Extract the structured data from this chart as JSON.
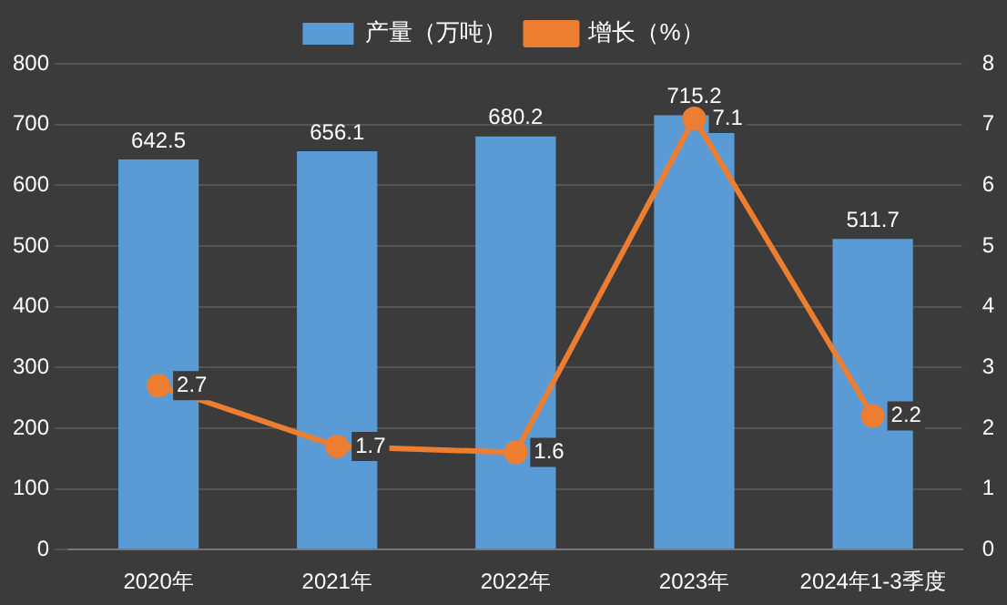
{
  "chart_data": {
    "type": "bar",
    "categories": [
      "2020年",
      "2021年",
      "2022年",
      "2023年",
      "2024年1-3季度"
    ],
    "series": [
      {
        "name": "产量（万吨）",
        "color": "#5b9bd5",
        "values": [
          642.5,
          656.1,
          680.2,
          715.2,
          511.7
        ]
      },
      {
        "name": "增长（%）",
        "type": "line",
        "axis": "y2",
        "color": "#ed7d31",
        "values": [
          2.7,
          1.7,
          1.6,
          7.1,
          2.2
        ]
      }
    ],
    "ylim": [
      0,
      800
    ],
    "yticks": [
      0,
      100,
      200,
      300,
      400,
      500,
      600,
      700,
      800
    ],
    "y2lim": [
      0,
      8
    ],
    "y2ticks": [
      0,
      1,
      2,
      3,
      4,
      5,
      6,
      7,
      8
    ],
    "grid": "y",
    "legend": "top",
    "marker": "circle",
    "line_style": "solid",
    "data_labels": true
  }
}
